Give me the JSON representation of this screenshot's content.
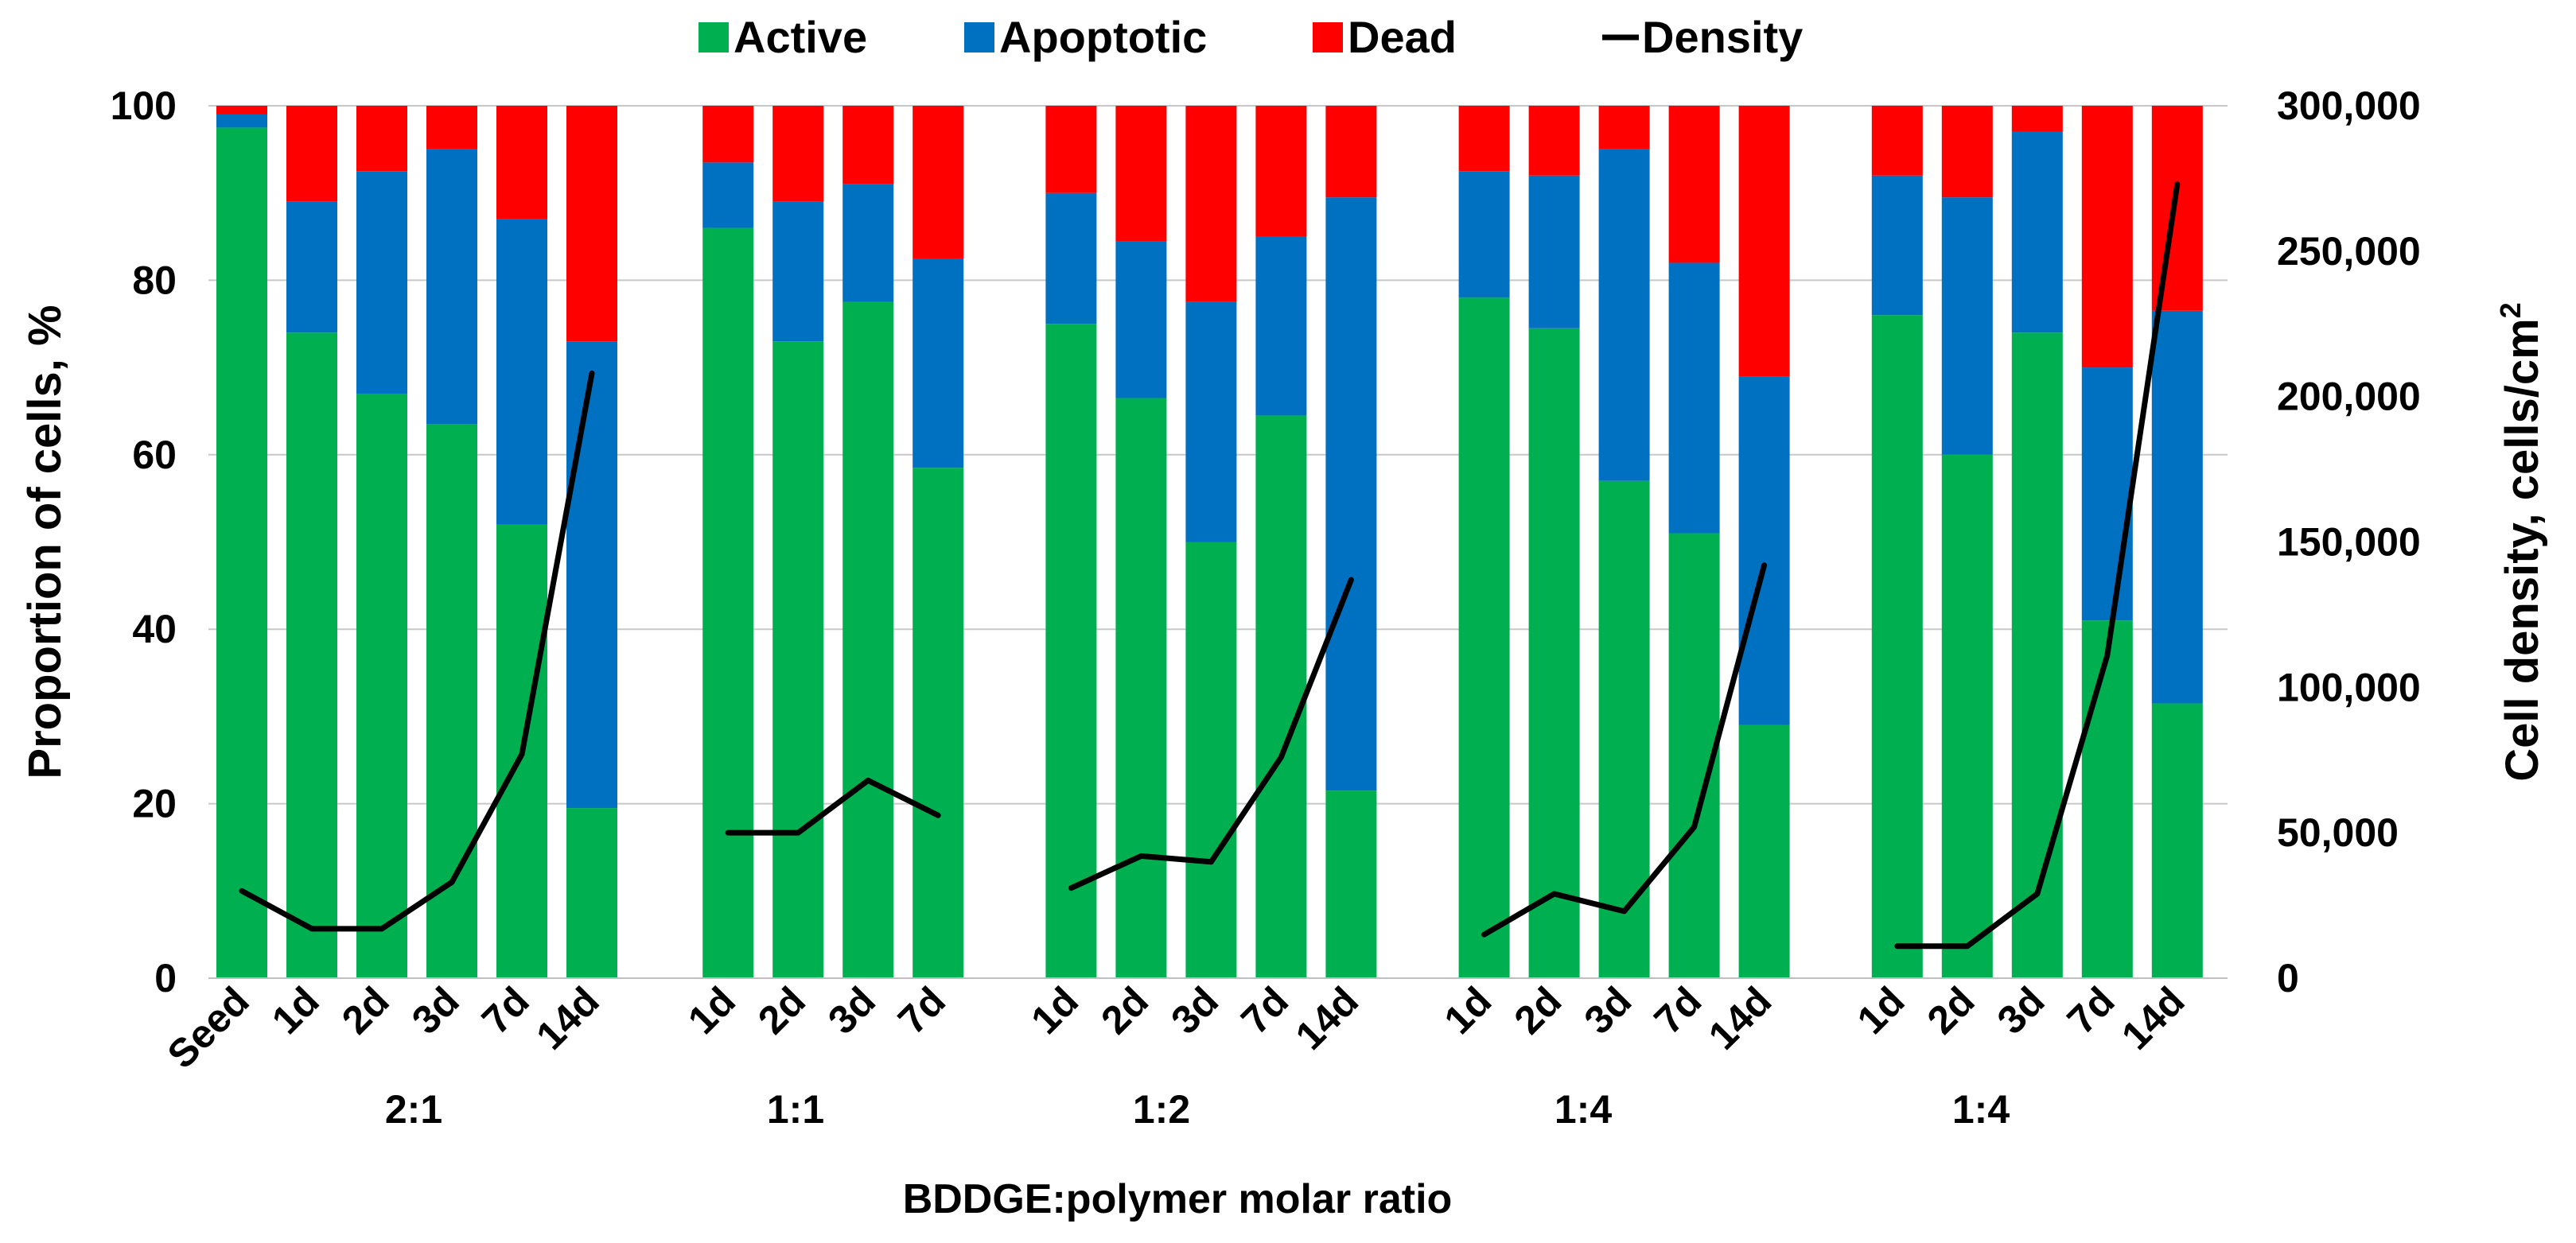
{
  "chart_data": {
    "type": "bar",
    "stacked": true,
    "title": "",
    "legend": [
      {
        "name": "Active",
        "color": "#00B050",
        "kind": "bar"
      },
      {
        "name": "Apoptotic",
        "color": "#0070C0",
        "kind": "bar"
      },
      {
        "name": "Dead",
        "color": "#FF0000",
        "kind": "bar"
      },
      {
        "name": "Density",
        "color": "#000000",
        "kind": "line"
      }
    ],
    "legend_position": "top",
    "grid": true,
    "ylabel": "Proportion of cells, %",
    "ylim": [
      0,
      100
    ],
    "yticks": [
      "0",
      "20",
      "40",
      "60",
      "80",
      "100"
    ],
    "y2label": "Cell density, cells/cm",
    "y2label_sup": "2",
    "y2lim": [
      0,
      300000
    ],
    "y2ticks": [
      "0",
      "50,000",
      "100,000",
      "150,000",
      "200,000",
      "250,000",
      "300,000"
    ],
    "xlabel": "BDDGE:polymer molar ratio",
    "groups": [
      {
        "label": "2:1",
        "categories": [
          "Seed",
          "1d",
          "2d",
          "3d",
          "7d",
          "14d"
        ],
        "active": [
          97.5,
          74,
          67,
          63.5,
          52,
          19.5
        ],
        "apoptotic": [
          1.5,
          15,
          25.5,
          31.5,
          35,
          53.5
        ],
        "dead": [
          1,
          11,
          7.5,
          5,
          13,
          27
        ],
        "density": [
          30000,
          17000,
          17000,
          33000,
          77000,
          208000
        ]
      },
      {
        "label": "1:1",
        "categories": [
          "1d",
          "2d",
          "3d",
          "7d"
        ],
        "active": [
          86,
          73,
          77.5,
          58.5
        ],
        "apoptotic": [
          7.5,
          16,
          13.5,
          24
        ],
        "dead": [
          6.5,
          11,
          9,
          17.5
        ],
        "density": [
          50000,
          50000,
          68000,
          56000
        ]
      },
      {
        "label": "1:2",
        "categories": [
          "1d",
          "2d",
          "3d",
          "7d",
          "14d"
        ],
        "active": [
          75,
          66.5,
          50,
          64.5,
          21.5
        ],
        "apoptotic": [
          15,
          18,
          27.5,
          20.5,
          68
        ],
        "dead": [
          10,
          15.5,
          22.5,
          15,
          10.5
        ],
        "density": [
          31000,
          42000,
          40000,
          76000,
          137000
        ]
      },
      {
        "label": "1:4",
        "categories": [
          "1d",
          "2d",
          "3d",
          "7d",
          "14d"
        ],
        "active": [
          78,
          74.5,
          57,
          51,
          29
        ],
        "apoptotic": [
          14.5,
          17.5,
          38,
          31,
          40
        ],
        "dead": [
          7.5,
          8,
          5,
          18,
          31
        ],
        "density": [
          15000,
          29000,
          23000,
          52000,
          142000
        ]
      },
      {
        "label": "1:4",
        "categories": [
          "1d",
          "2d",
          "3d",
          "7d",
          "14d"
        ],
        "active": [
          76,
          60,
          74,
          41,
          31.5
        ],
        "apoptotic": [
          16,
          29.5,
          23,
          29,
          45
        ],
        "dead": [
          8,
          10.5,
          3,
          30,
          23.5
        ],
        "density": [
          11000,
          11000,
          29000,
          111000,
          273000
        ]
      }
    ]
  }
}
